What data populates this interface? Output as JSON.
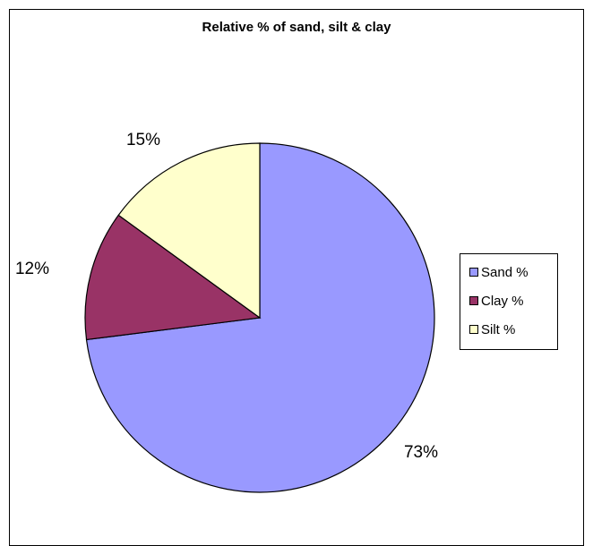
{
  "chart_data": {
    "type": "pie",
    "title": "Relative % of sand, silt & clay",
    "categories": [
      "Sand %",
      "Clay %",
      "Silt %"
    ],
    "values": [
      73,
      12,
      15
    ],
    "data_labels": [
      "73%",
      "12%",
      "15%"
    ],
    "colors": [
      "#9999FF",
      "#993366",
      "#FFFFCC"
    ],
    "legend_position": "right",
    "start_angle_deg": 0,
    "direction": "clockwise"
  }
}
